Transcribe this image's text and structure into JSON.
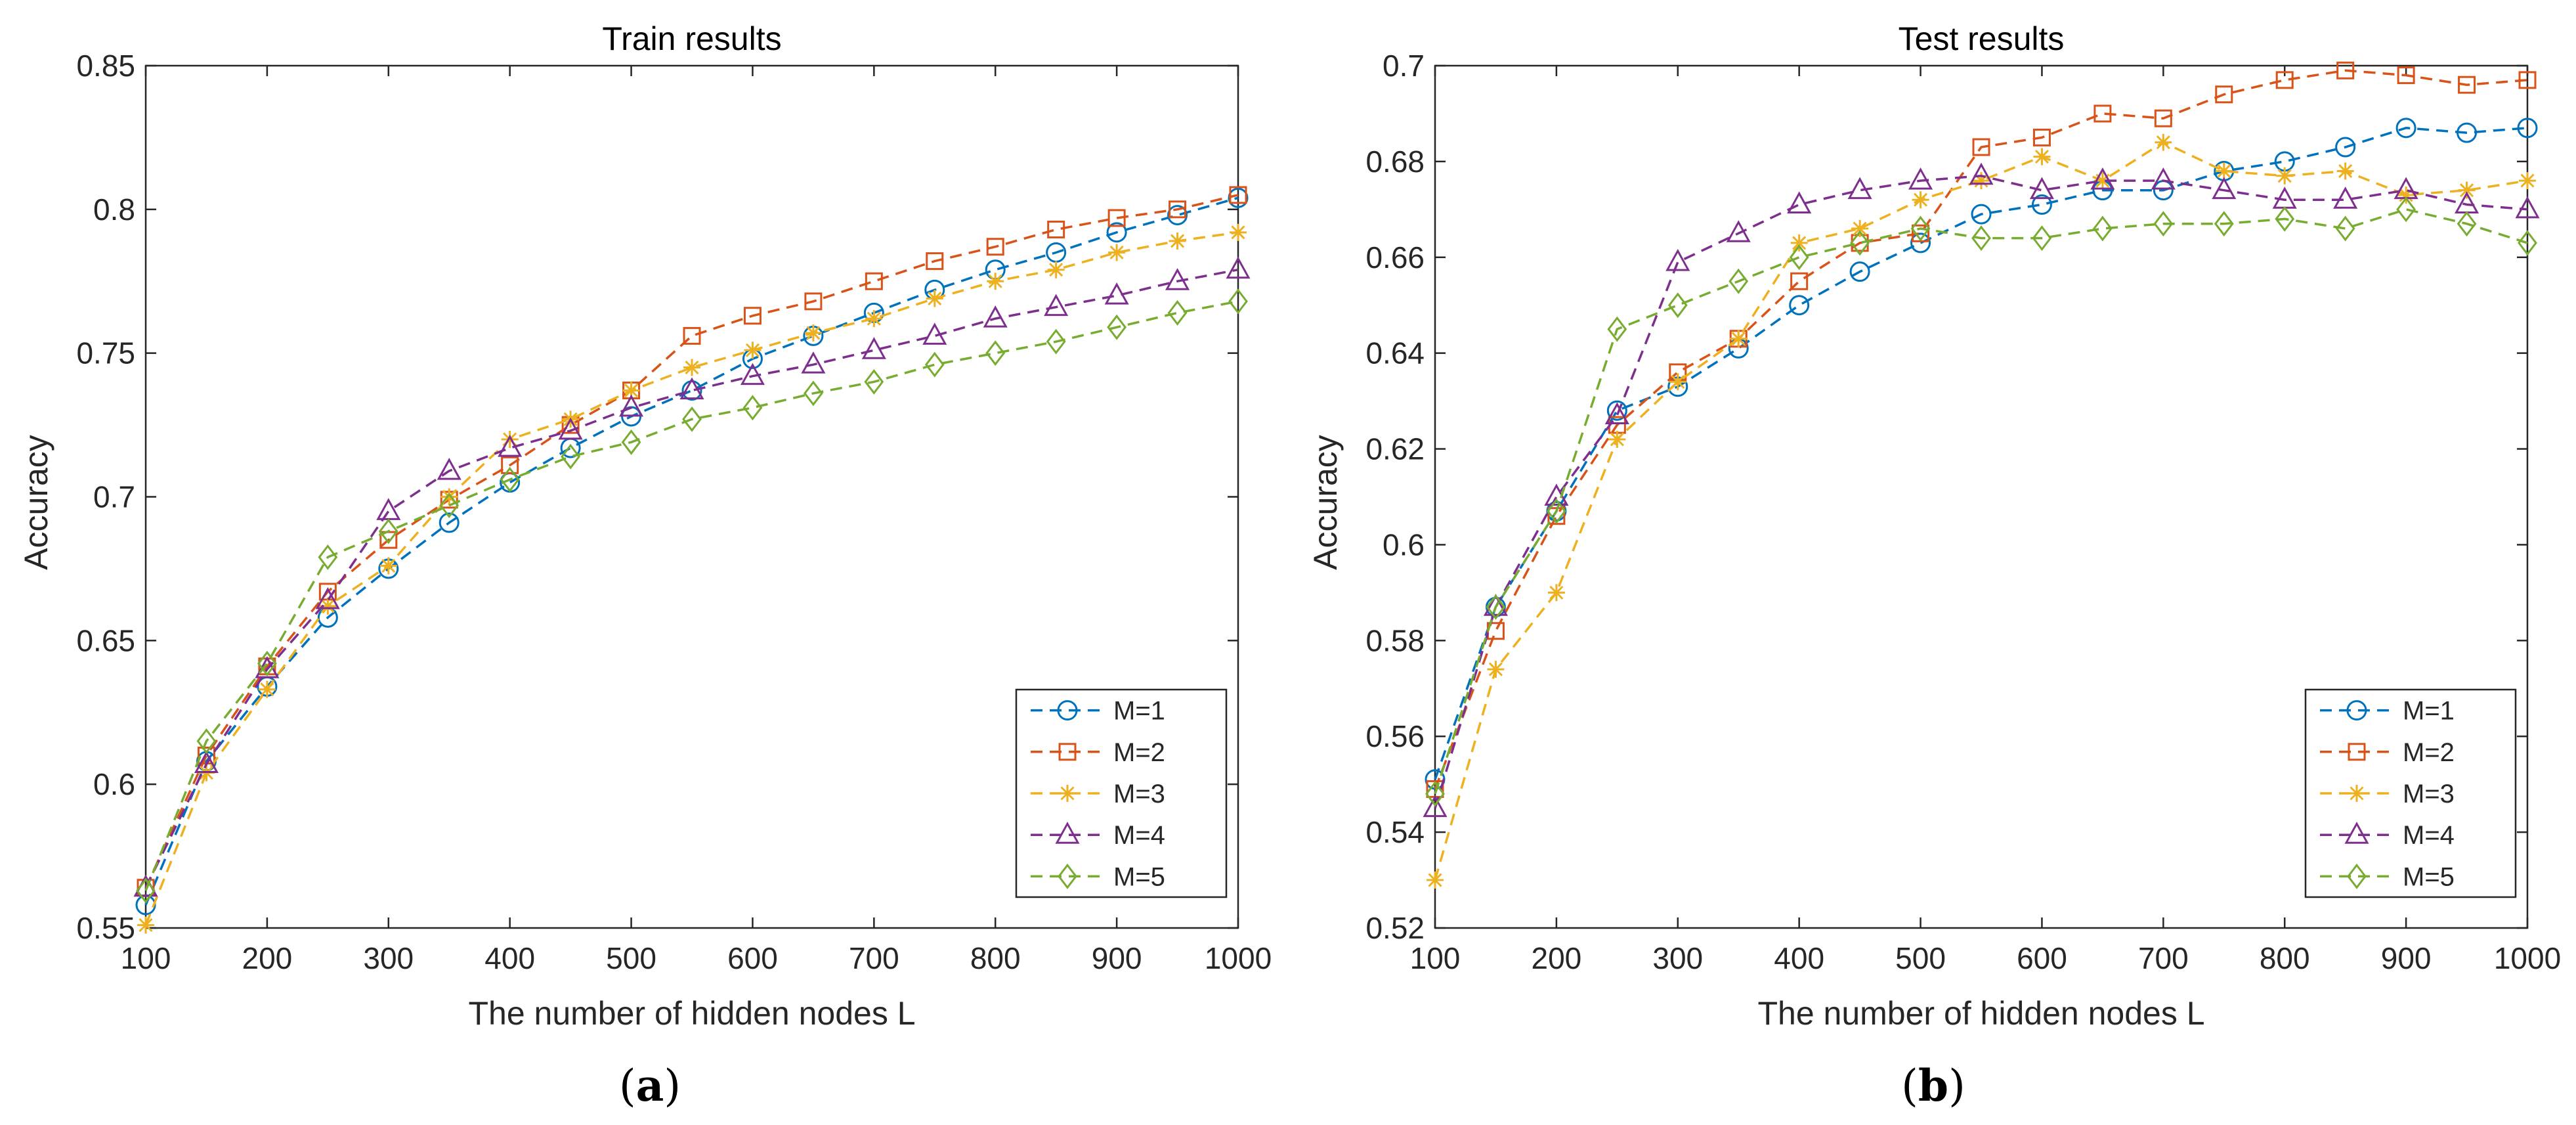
{
  "panels": [
    {
      "label_open": "(",
      "label_letter": "a",
      "label_close": ")"
    },
    {
      "label_open": "(",
      "label_letter": "b",
      "label_close": ")"
    }
  ],
  "chart_data": [
    {
      "type": "line",
      "title": "Train results",
      "xlabel": "The number of hidden nodes L",
      "ylabel": "Accuracy",
      "xlim": [
        100,
        1000
      ],
      "ylim": [
        0.55,
        0.85
      ],
      "xticks": [
        100,
        200,
        300,
        400,
        500,
        600,
        700,
        800,
        900,
        1000
      ],
      "yticks": [
        0.55,
        0.6,
        0.65,
        0.7,
        0.75,
        0.8,
        0.85
      ],
      "ytick_labels": [
        "0.55",
        "0.6",
        "0.65",
        "0.7",
        "0.75",
        "0.8",
        "0.85"
      ],
      "legend_position": "bottom-right",
      "x": [
        100,
        150,
        200,
        250,
        300,
        350,
        400,
        450,
        500,
        550,
        600,
        650,
        700,
        750,
        800,
        850,
        900,
        950,
        1000
      ],
      "series": [
        {
          "name": "M=1",
          "color": "#0072BD",
          "marker": "circle",
          "values": [
            0.558,
            0.608,
            0.634,
            0.658,
            0.675,
            0.691,
            0.705,
            0.717,
            0.728,
            0.737,
            0.748,
            0.756,
            0.764,
            0.772,
            0.779,
            0.785,
            0.792,
            0.798,
            0.804
          ]
        },
        {
          "name": "M=2",
          "color": "#D95319",
          "marker": "square",
          "values": [
            0.564,
            0.61,
            0.641,
            0.667,
            0.685,
            0.699,
            0.711,
            0.725,
            0.737,
            0.756,
            0.763,
            0.768,
            0.775,
            0.782,
            0.787,
            0.793,
            0.797,
            0.8,
            0.805
          ]
        },
        {
          "name": "M=3",
          "color": "#EDB120",
          "marker": "asterisk",
          "values": [
            0.551,
            0.604,
            0.633,
            0.662,
            0.676,
            0.7,
            0.72,
            0.727,
            0.737,
            0.745,
            0.751,
            0.757,
            0.762,
            0.769,
            0.775,
            0.779,
            0.785,
            0.789,
            0.792
          ]
        },
        {
          "name": "M=4",
          "color": "#7E2F8E",
          "marker": "triangle",
          "values": [
            0.564,
            0.607,
            0.64,
            0.664,
            0.695,
            0.709,
            0.717,
            0.723,
            0.731,
            0.737,
            0.742,
            0.746,
            0.751,
            0.756,
            0.762,
            0.766,
            0.77,
            0.775,
            0.779
          ]
        },
        {
          "name": "M=5",
          "color": "#77AC30",
          "marker": "diamond",
          "values": [
            0.563,
            0.615,
            0.642,
            0.679,
            0.688,
            0.697,
            0.706,
            0.714,
            0.719,
            0.727,
            0.731,
            0.736,
            0.74,
            0.746,
            0.75,
            0.754,
            0.759,
            0.764,
            0.768
          ]
        }
      ]
    },
    {
      "type": "line",
      "title": "Test results",
      "xlabel": "The number of hidden nodes L",
      "ylabel": "Accuracy",
      "xlim": [
        100,
        1000
      ],
      "ylim": [
        0.52,
        0.7
      ],
      "xticks": [
        100,
        200,
        300,
        400,
        500,
        600,
        700,
        800,
        900,
        1000
      ],
      "yticks": [
        0.52,
        0.54,
        0.56,
        0.58,
        0.6,
        0.62,
        0.64,
        0.66,
        0.68,
        0.7
      ],
      "ytick_labels": [
        "0.52",
        "0.54",
        "0.56",
        "0.58",
        "0.6",
        "0.62",
        "0.64",
        "0.66",
        "0.68",
        "0.7"
      ],
      "legend_position": "bottom-right",
      "x": [
        100,
        150,
        200,
        250,
        300,
        350,
        400,
        450,
        500,
        550,
        600,
        650,
        700,
        750,
        800,
        850,
        900,
        950,
        1000
      ],
      "series": [
        {
          "name": "M=1",
          "color": "#0072BD",
          "marker": "circle",
          "values": [
            0.551,
            0.587,
            0.607,
            0.628,
            0.633,
            0.641,
            0.65,
            0.657,
            0.663,
            0.669,
            0.671,
            0.674,
            0.674,
            0.678,
            0.68,
            0.683,
            0.687,
            0.686,
            0.687
          ]
        },
        {
          "name": "M=2",
          "color": "#D95319",
          "marker": "square",
          "values": [
            0.549,
            0.582,
            0.606,
            0.625,
            0.636,
            0.643,
            0.655,
            0.663,
            0.665,
            0.683,
            0.685,
            0.69,
            0.689,
            0.694,
            0.697,
            0.699,
            0.698,
            0.696,
            0.697
          ]
        },
        {
          "name": "M=3",
          "color": "#EDB120",
          "marker": "asterisk",
          "values": [
            0.53,
            0.574,
            0.59,
            0.622,
            0.634,
            0.643,
            0.663,
            0.666,
            0.672,
            0.676,
            0.681,
            0.676,
            0.684,
            0.678,
            0.677,
            0.678,
            0.673,
            0.674,
            0.676
          ]
        },
        {
          "name": "M=4",
          "color": "#7E2F8E",
          "marker": "triangle",
          "values": [
            0.545,
            0.587,
            0.61,
            0.627,
            0.659,
            0.665,
            0.671,
            0.674,
            0.676,
            0.677,
            0.674,
            0.676,
            0.676,
            0.674,
            0.672,
            0.672,
            0.674,
            0.671,
            0.67
          ]
        },
        {
          "name": "M=5",
          "color": "#77AC30",
          "marker": "diamond",
          "values": [
            0.548,
            0.587,
            0.607,
            0.645,
            0.65,
            0.655,
            0.66,
            0.663,
            0.666,
            0.664,
            0.664,
            0.666,
            0.667,
            0.667,
            0.668,
            0.666,
            0.67,
            0.667,
            0.663
          ]
        }
      ]
    }
  ]
}
